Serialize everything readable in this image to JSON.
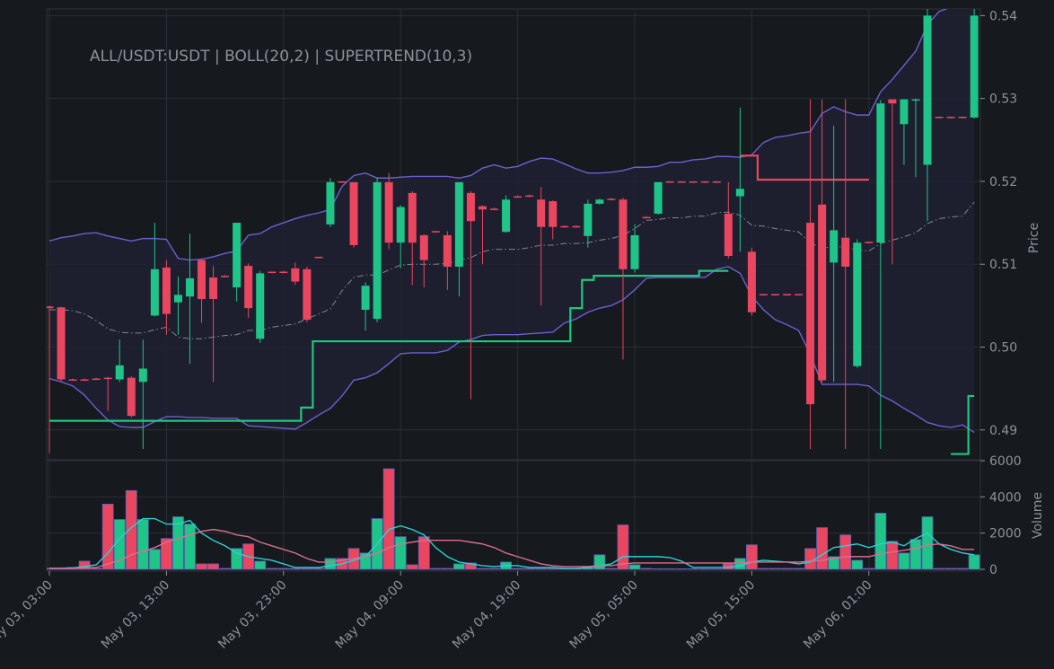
{
  "chart_data": [
    {
      "type": "candlestick",
      "title": "ALL/USDT:USDT | BOLL(20,2) | SUPERTREND(10,3)",
      "ylabel": "Price",
      "x": [
        "May 03, 03:00",
        null,
        null,
        null,
        null,
        null,
        null,
        null,
        null,
        null,
        "May 03, 13:00",
        null,
        null,
        null,
        null,
        null,
        null,
        null,
        null,
        null,
        "May 03, 23:00",
        null,
        null,
        null,
        null,
        null,
        null,
        null,
        null,
        null,
        "May 04, 09:00",
        null,
        null,
        null,
        null,
        null,
        null,
        null,
        null,
        null,
        "May 04, 19:00",
        null,
        null,
        null,
        null,
        null,
        null,
        null,
        null,
        null,
        "May 05, 05:00",
        null,
        null,
        null,
        null,
        null,
        null,
        null,
        null,
        null,
        "May 05, 15:00",
        null,
        null,
        null,
        null,
        null,
        null,
        null,
        null,
        null,
        "May 06, 01:00",
        null,
        null,
        null,
        null,
        null,
        null,
        null,
        null,
        null
      ],
      "open": [
        0.5049,
        0.5048,
        0.4961,
        0.4961,
        0.4962,
        0.4963,
        0.4961,
        0.4963,
        0.4958,
        0.5038,
        0.5096,
        0.5054,
        0.5061,
        0.5105,
        0.5084,
        0.5086,
        0.5072,
        0.5098,
        0.501,
        0.5091,
        0.5091,
        0.5095,
        0.5094,
        0.5109,
        0.5148,
        0.52,
        0.5199,
        0.5045,
        0.5034,
        0.5199,
        0.5126,
        0.5186,
        0.5135,
        0.514,
        0.5135,
        0.5097,
        0.5186,
        0.517,
        0.5167,
        0.5139,
        0.5182,
        0.5183,
        0.5178,
        0.5176,
        0.5146,
        0.5146,
        0.5134,
        0.5173,
        0.5179,
        0.5178,
        0.5094,
        0.5157,
        0.5161,
        0.52,
        0.52,
        0.52,
        0.52,
        0.52,
        0.5161,
        0.5182,
        0.5115,
        0.5064,
        0.5064,
        0.5064,
        0.5064,
        0.515,
        0.5172,
        0.5102,
        0.5132,
        0.4977,
        0.5127,
        0.5126,
        0.5299,
        0.5269,
        0.5298,
        0.522,
        0.5278,
        0.5278,
        0.5278,
        0.5277
      ],
      "high": [
        0.505,
        0.5048,
        0.4962,
        0.4962,
        0.4963,
        0.4964,
        0.5009,
        0.4965,
        0.5009,
        0.515,
        0.5105,
        0.5085,
        0.5137,
        0.5107,
        0.5098,
        0.5087,
        0.515,
        0.5101,
        0.5092,
        0.5091,
        0.5092,
        0.5102,
        0.5097,
        0.5109,
        0.5204,
        0.52,
        0.5199,
        0.5078,
        0.5205,
        0.521,
        0.5171,
        0.5188,
        0.5136,
        0.514,
        0.514,
        0.5199,
        0.5188,
        0.5171,
        0.5168,
        0.5183,
        0.5183,
        0.5184,
        0.5193,
        0.5177,
        0.5147,
        0.5147,
        0.5178,
        0.5179,
        0.518,
        0.518,
        0.5148,
        0.5158,
        0.5199,
        0.52,
        0.52,
        0.52,
        0.52,
        0.52,
        0.5199,
        0.5289,
        0.512,
        0.5064,
        0.5064,
        0.5064,
        0.5064,
        0.5299,
        0.5299,
        0.5267,
        0.5299,
        0.513,
        0.5127,
        0.5298,
        0.5299,
        0.5299,
        0.53,
        0.5408,
        0.5278,
        0.5278,
        0.5278,
        0.5408
      ],
      "low": [
        0.4872,
        0.4958,
        0.496,
        0.496,
        0.4961,
        0.4923,
        0.4958,
        0.4915,
        0.4877,
        0.5037,
        0.5015,
        0.5015,
        0.498,
        0.5029,
        0.4958,
        0.5084,
        0.5055,
        0.5035,
        0.5005,
        0.5089,
        0.5089,
        0.5075,
        0.503,
        0.5107,
        0.5145,
        0.5198,
        0.512,
        0.502,
        0.503,
        0.5118,
        0.5095,
        0.5075,
        0.5072,
        0.5138,
        0.5069,
        0.5061,
        0.4937,
        0.51,
        0.5165,
        0.5138,
        0.518,
        0.5181,
        0.505,
        0.513,
        0.5144,
        0.5144,
        0.512,
        0.5172,
        0.5177,
        0.4985,
        0.509,
        0.5155,
        0.516,
        0.5198,
        0.5198,
        0.5198,
        0.5198,
        0.5198,
        0.5107,
        0.5115,
        0.5038,
        0.5062,
        0.5062,
        0.5062,
        0.5062,
        0.4877,
        0.4958,
        0.4958,
        0.4877,
        0.4975,
        0.5125,
        0.4877,
        0.51,
        0.522,
        0.5205,
        0.5152,
        0.5276,
        0.5276,
        0.5276,
        0.5276
      ],
      "close": [
        0.5047,
        0.4961,
        0.496,
        0.496,
        0.4961,
        0.4962,
        0.4978,
        0.4917,
        0.4974,
        0.5094,
        0.504,
        0.5063,
        0.5083,
        0.5058,
        0.5058,
        0.5085,
        0.515,
        0.5047,
        0.5089,
        0.509,
        0.509,
        0.5079,
        0.5033,
        0.5108,
        0.5199,
        0.5199,
        0.5123,
        0.5074,
        0.5199,
        0.5126,
        0.5169,
        0.5126,
        0.5105,
        0.5139,
        0.5097,
        0.5199,
        0.5152,
        0.5166,
        0.5166,
        0.5178,
        0.5181,
        0.5182,
        0.5145,
        0.5145,
        0.5145,
        0.5145,
        0.5173,
        0.5178,
        0.5178,
        0.5094,
        0.5135,
        0.5156,
        0.5199,
        0.5199,
        0.5199,
        0.5199,
        0.5199,
        0.5199,
        0.511,
        0.5191,
        0.5042,
        0.5063,
        0.5063,
        0.5063,
        0.5063,
        0.4931,
        0.496,
        0.5141,
        0.5097,
        0.5126,
        0.5126,
        0.5294,
        0.5294,
        0.5299,
        0.5299,
        0.54,
        0.5277,
        0.5277,
        0.5277,
        0.54
      ],
      "up_color": "#1fc488",
      "down_color": "#ea4660",
      "band_fill": "#1f2133",
      "series": [
        {
          "color": "#6e5fcf",
          "style": "solid",
          "values": [
            0.5128,
            0.5132,
            0.5134,
            0.5137,
            0.5138,
            0.5134,
            0.5131,
            0.5128,
            0.5131,
            0.5131,
            0.513,
            0.5107,
            0.5105,
            0.5106,
            0.5109,
            0.5113,
            0.5116,
            0.5135,
            0.5137,
            0.5145,
            0.515,
            0.5155,
            0.5159,
            0.5162,
            0.5166,
            0.5194,
            0.5207,
            0.521,
            0.5204,
            0.5204,
            0.5205,
            0.5206,
            0.5206,
            0.5206,
            0.5206,
            0.5204,
            0.5207,
            0.5216,
            0.522,
            0.5216,
            0.5218,
            0.5224,
            0.5228,
            0.5227,
            0.5221,
            0.5215,
            0.521,
            0.521,
            0.5211,
            0.5213,
            0.5217,
            0.5217,
            0.5218,
            0.5223,
            0.5223,
            0.5226,
            0.5227,
            0.523,
            0.523,
            0.5229,
            0.5232,
            0.5247,
            0.5253,
            0.5255,
            0.5258,
            0.526,
            0.5282,
            0.529,
            0.5284,
            0.528,
            0.528,
            0.5308,
            0.5323,
            0.534,
            0.5357,
            0.5389,
            0.5405,
            0.541,
            0.541,
            0.541
          ]
        },
        {
          "color": "#80858e",
          "style": "dashdot",
          "values": [
            0.5045,
            0.5045,
            0.5044,
            0.504,
            0.5032,
            0.5022,
            0.5018,
            0.5017,
            0.5017,
            0.5021,
            0.5024,
            0.5012,
            0.501,
            0.501,
            0.5012,
            0.5014,
            0.5015,
            0.502,
            0.502,
            0.5024,
            0.5026,
            0.5028,
            0.5034,
            0.504,
            0.5046,
            0.5068,
            0.5084,
            0.5087,
            0.5087,
            0.5093,
            0.5099,
            0.51,
            0.51,
            0.51,
            0.5101,
            0.5105,
            0.5108,
            0.5115,
            0.5118,
            0.5118,
            0.5118,
            0.512,
            0.5123,
            0.5123,
            0.5125,
            0.5125,
            0.5126,
            0.5129,
            0.5131,
            0.5135,
            0.5143,
            0.5153,
            0.5154,
            0.5156,
            0.5156,
            0.5158,
            0.5158,
            0.5162,
            0.5163,
            0.5159,
            0.5147,
            0.5146,
            0.5143,
            0.5141,
            0.5139,
            0.5126,
            0.5119,
            0.5122,
            0.512,
            0.5117,
            0.5116,
            0.5125,
            0.5129,
            0.5133,
            0.5138,
            0.5149,
            0.5155,
            0.5157,
            0.5158,
            0.5175
          ]
        },
        {
          "color": "#6e5fcf",
          "style": "solid",
          "values": [
            0.4962,
            0.4958,
            0.4953,
            0.4942,
            0.4926,
            0.4912,
            0.4904,
            0.4903,
            0.4903,
            0.491,
            0.4916,
            0.4916,
            0.4915,
            0.4915,
            0.4914,
            0.4914,
            0.4914,
            0.4905,
            0.4904,
            0.4903,
            0.4902,
            0.4901,
            0.4909,
            0.4918,
            0.4926,
            0.4941,
            0.496,
            0.4963,
            0.4969,
            0.498,
            0.4992,
            0.4993,
            0.4993,
            0.4993,
            0.4996,
            0.5006,
            0.5009,
            0.5014,
            0.5015,
            0.5015,
            0.5015,
            0.5016,
            0.5017,
            0.5018,
            0.5029,
            0.5034,
            0.5042,
            0.5047,
            0.505,
            0.5057,
            0.5069,
            0.5083,
            0.5084,
            0.5084,
            0.5084,
            0.5084,
            0.5084,
            0.5094,
            0.5097,
            0.5089,
            0.5061,
            0.5045,
            0.5033,
            0.5027,
            0.502,
            0.4991,
            0.4955,
            0.4955,
            0.4955,
            0.4955,
            0.4953,
            0.4942,
            0.4935,
            0.4926,
            0.4918,
            0.4909,
            0.4905,
            0.4903,
            0.4906,
            0.4897
          ]
        },
        {
          "color": "#1fc77e",
          "style": "step",
          "values": [
            0.4911,
            0.4911,
            0.4911,
            0.4911,
            0.4911,
            0.4911,
            0.4911,
            0.4911,
            0.4911,
            0.4911,
            0.4911,
            0.4911,
            0.4911,
            0.4911,
            0.4911,
            0.4911,
            0.4911,
            0.4911,
            0.4911,
            0.4911,
            0.4911,
            0.4911,
            0.4927,
            0.5007,
            0.5007,
            0.5007,
            0.5007,
            0.5007,
            0.5007,
            0.5007,
            0.5007,
            0.5007,
            0.5007,
            0.5007,
            0.5007,
            0.5007,
            0.5007,
            0.5007,
            0.5007,
            0.5007,
            0.5007,
            0.5007,
            0.5007,
            0.5007,
            0.5007,
            0.5047,
            0.5081,
            0.5086,
            0.5086,
            0.5086,
            0.5086,
            0.5086,
            0.5086,
            0.5086,
            0.5086,
            0.5086,
            0.5092,
            0.5092,
            0.5092,
            null,
            null,
            null,
            null,
            null,
            null,
            null,
            null,
            null,
            null,
            null,
            null,
            null,
            null,
            null,
            null,
            null,
            null,
            0.4871,
            0.4871,
            0.4941
          ]
        },
        {
          "color": "#ea4660",
          "style": "step",
          "values": [
            null,
            null,
            null,
            null,
            null,
            null,
            null,
            null,
            null,
            null,
            null,
            null,
            null,
            null,
            null,
            null,
            null,
            null,
            null,
            null,
            null,
            null,
            null,
            null,
            null,
            null,
            null,
            null,
            null,
            null,
            null,
            null,
            null,
            null,
            null,
            null,
            null,
            null,
            null,
            null,
            null,
            null,
            null,
            null,
            null,
            null,
            null,
            null,
            null,
            null,
            null,
            null,
            null,
            null,
            null,
            null,
            null,
            null,
            null,
            0.5231,
            0.5231,
            0.5202,
            0.5202,
            0.5202,
            0.5202,
            0.5202,
            0.5202,
            0.5202,
            0.5202,
            0.5202,
            0.5202,
            null,
            null,
            null,
            null,
            null,
            null,
            null,
            null,
            null
          ]
        }
      ],
      "ylim": [
        0.4864,
        0.5408
      ],
      "yticks": [
        0.49,
        {
          "value": 0.5,
          "label": "0.50"
        },
        0.51,
        0.52,
        0.53,
        0.54
      ],
      "grid": true
    },
    {
      "type": "bar",
      "ylabel": "Volume",
      "values": [
        60,
        60,
        100,
        450,
        60,
        3600,
        2750,
        4350,
        2750,
        1100,
        1700,
        2900,
        2500,
        300,
        300,
        50,
        1150,
        1400,
        450,
        50,
        50,
        50,
        50,
        50,
        600,
        600,
        1150,
        900,
        2800,
        5550,
        1800,
        250,
        1800,
        50,
        50,
        300,
        350,
        50,
        50,
        400,
        50,
        50,
        50,
        50,
        50,
        50,
        100,
        800,
        50,
        2450,
        250,
        50,
        30,
        30,
        30,
        30,
        30,
        30,
        300,
        600,
        1350,
        50,
        50,
        50,
        50,
        1150,
        2300,
        700,
        1900,
        500,
        50,
        3100,
        1550,
        900,
        1650,
        2900,
        50,
        50,
        50,
        800
      ],
      "series": [
        {
          "color": "#2cd0d4",
          "style": "solid",
          "values": [
            50,
            60,
            80,
            150,
            250,
            900,
            1700,
            2300,
            2800,
            2800,
            2500,
            2500,
            2700,
            2000,
            1600,
            1300,
            900,
            700,
            600,
            500,
            300,
            100,
            100,
            100,
            200,
            300,
            500,
            700,
            1400,
            2200,
            2400,
            2200,
            1900,
            1200,
            700,
            400,
            300,
            200,
            150,
            200,
            200,
            100,
            100,
            100,
            50,
            50,
            100,
            200,
            300,
            700,
            700,
            700,
            700,
            650,
            450,
            100,
            100,
            100,
            100,
            200,
            400,
            500,
            450,
            400,
            300,
            400,
            800,
            1200,
            1300,
            1400,
            1200,
            1400,
            1500,
            1300,
            1700,
            2000,
            1400,
            1100,
            900,
            800
          ]
        },
        {
          "color": "#d8708f",
          "style": "solid",
          "values": [
            50,
            55,
            60,
            80,
            100,
            300,
            500,
            800,
            1000,
            1200,
            1500,
            1700,
            1900,
            2100,
            2200,
            2100,
            1900,
            1800,
            1500,
            1300,
            1100,
            900,
            600,
            400,
            400,
            500,
            600,
            700,
            900,
            1200,
            1400,
            1500,
            1600,
            1600,
            1600,
            1600,
            1500,
            1400,
            1200,
            900,
            700,
            500,
            300,
            200,
            150,
            150,
            150,
            200,
            200,
            300,
            350,
            350,
            350,
            350,
            350,
            350,
            350,
            350,
            350,
            350,
            400,
            400,
            400,
            400,
            400,
            450,
            500,
            600,
            700,
            700,
            700,
            850,
            950,
            1050,
            1150,
            1350,
            1400,
            1300,
            1100,
            1100
          ]
        }
      ],
      "ylim": [
        0,
        6000
      ],
      "yticks": [
        0,
        2000,
        4000,
        6000
      ],
      "grid": true
    }
  ]
}
